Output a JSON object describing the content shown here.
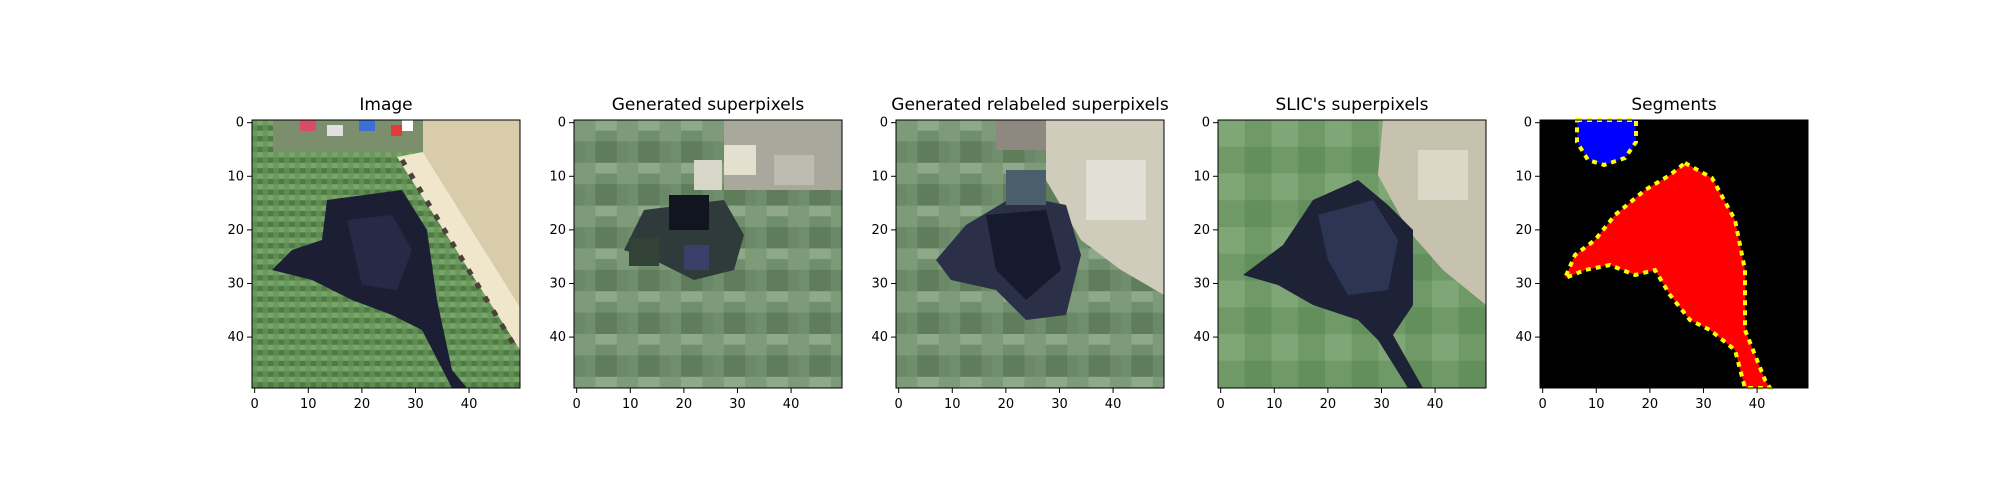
{
  "panels": [
    {
      "id": "image",
      "title": "Image",
      "xticks": [
        "0",
        "10",
        "20",
        "30",
        "40"
      ],
      "yticks": [
        "0",
        "10",
        "20",
        "30",
        "40"
      ],
      "content": "photo of a black dog lying on grass next to a wooden deck, pixelated 50x50"
    },
    {
      "id": "generated-superpixels",
      "title": "Generated superpixels",
      "xticks": [
        "0",
        "10",
        "20",
        "30",
        "40"
      ],
      "yticks": [
        "0",
        "10",
        "20",
        "30",
        "40"
      ],
      "content": "mosaic of green, grey and dark superpixel blocks"
    },
    {
      "id": "generated-relabeled-superpixels",
      "title": "Generated relabeled superpixels",
      "xticks": [
        "0",
        "10",
        "20",
        "30",
        "40"
      ],
      "yticks": [
        "0",
        "10",
        "20",
        "30",
        "40"
      ],
      "content": "mosaic of superpixel blocks with dark dog region and light deck region"
    },
    {
      "id": "slic-superpixels",
      "title": "SLIC's superpixels",
      "xticks": [
        "0",
        "10",
        "20",
        "30",
        "40"
      ],
      "yticks": [
        "0",
        "10",
        "20",
        "30",
        "40"
      ],
      "content": "SLIC superpixel segmentation showing dark dog shape on green grass with light deck"
    },
    {
      "id": "segments",
      "title": "Segments",
      "xticks": [
        "0",
        "10",
        "20",
        "30",
        "40"
      ],
      "yticks": [
        "0",
        "10",
        "20",
        "30",
        "40"
      ],
      "content": "black background with blue circle segment at top and red dog-shaped segment with yellow border"
    }
  ],
  "colors": {
    "grass": "#5e8c52",
    "dog": "#1c1f33",
    "deck": "#cdc7ae",
    "segment_red": "#ff0000",
    "segment_blue": "#0000ff",
    "segment_border": "#ffff00",
    "segment_bg": "#000000"
  }
}
